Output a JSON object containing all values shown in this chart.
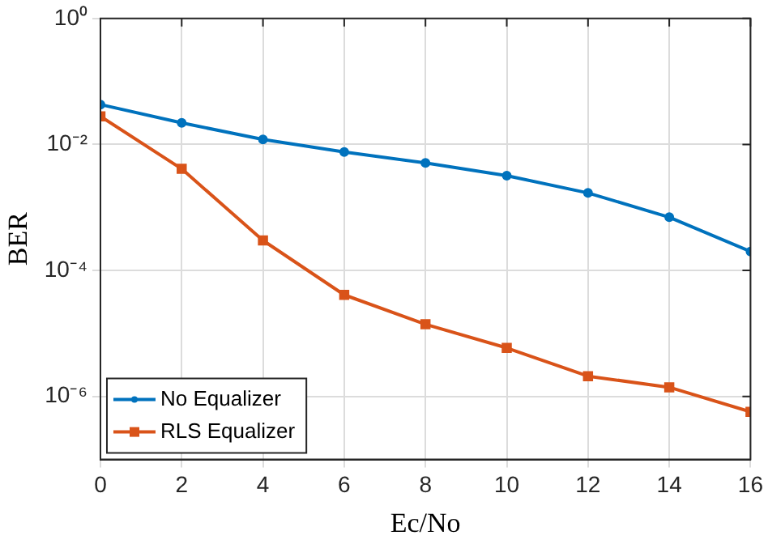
{
  "chart_data": {
    "type": "line",
    "xlabel": "Ec/No",
    "ylabel": "BER",
    "log": "y",
    "grid": true,
    "legend": "bottom left",
    "line_style": "solid",
    "x": [
      0,
      2,
      4,
      6,
      8,
      10,
      12,
      14,
      16
    ],
    "xlim": [
      0,
      16
    ],
    "xticks": [
      0,
      2,
      4,
      6,
      8,
      10,
      12,
      14,
      16
    ],
    "ylim": [
      1e-07,
      1
    ],
    "yticks": [
      {
        "value": 1,
        "label": "10⁰"
      },
      {
        "value": 0.01,
        "label": "10⁻²"
      },
      {
        "value": 0.0001,
        "label": "10⁻⁴"
      },
      {
        "value": 1e-06,
        "label": "10⁻⁶"
      }
    ],
    "series": [
      {
        "name": "No Equalizer",
        "color": "#0072bd",
        "marker": "circle",
        "values": [
          0.043,
          0.022,
          0.012,
          0.0076,
          0.0051,
          0.0032,
          0.0017,
          0.0007,
          0.0002
        ]
      },
      {
        "name": "RLS Equalizer",
        "color": "#d95319",
        "marker": "square",
        "values": [
          0.028,
          0.0041,
          0.0003,
          4.1e-05,
          1.4e-05,
          5.9e-06,
          2.1e-06,
          1.4e-06,
          5.7e-07
        ]
      }
    ]
  }
}
